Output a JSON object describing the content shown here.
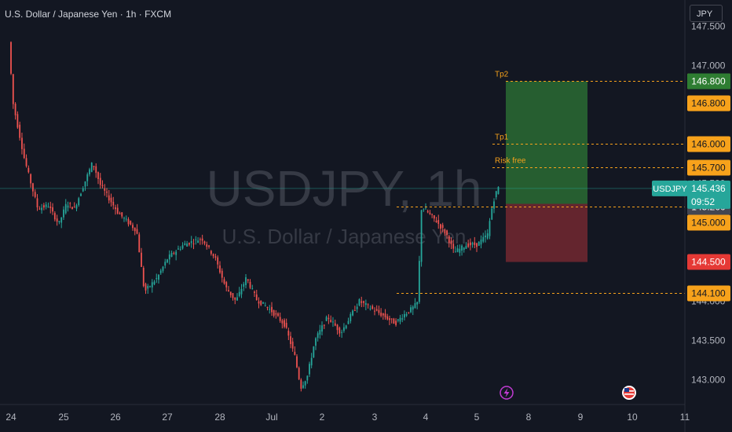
{
  "header": {
    "title": "U.S. Dollar / Japanese Yen · 1h · FXCM",
    "currency_button": "JPY"
  },
  "watermark": {
    "symbol": "USDJPY, 1h",
    "description": "U.S. Dollar / Japanese Yen"
  },
  "colors": {
    "background": "#131722",
    "up": "#26a69a",
    "down": "#ef5350",
    "level_line": "#f7a21b",
    "profit_zone": "#2a6b32",
    "loss_zone": "#6e2730",
    "current_price": "#26a69a"
  },
  "chart_data": {
    "type": "candlestick",
    "symbol": "USDJPY",
    "timeframe": "1h",
    "source": "FXCM",
    "y_axis": {
      "ticks": [
        143.0,
        143.5,
        144.0,
        144.5,
        145.0,
        145.5,
        146.0,
        146.5,
        147.0,
        147.5
      ],
      "tick_labels": [
        "143.000",
        "143.500",
        "144.000",
        "144.500",
        "145.000",
        "145.500",
        "146.000",
        "146.500",
        "147.000",
        "147.500"
      ],
      "ylim": [
        142.62,
        147.58
      ]
    },
    "x_axis": {
      "tick_labels": [
        "24",
        "25",
        "26",
        "27",
        "28",
        "Jul",
        "2",
        "3",
        "4",
        "5",
        "8",
        "9",
        "10",
        "11"
      ],
      "tick_index": [
        0,
        1,
        2,
        3,
        4,
        5,
        6,
        7,
        8,
        9,
        10,
        11,
        12,
        13
      ]
    },
    "price_path": [
      [
        0,
        147.3
      ],
      [
        0.08,
        146.52
      ],
      [
        0.3,
        145.8
      ],
      [
        0.55,
        145.18
      ],
      [
        0.75,
        145.22
      ],
      [
        0.95,
        144.98
      ],
      [
        1.1,
        145.25
      ],
      [
        1.25,
        145.18
      ],
      [
        1.6,
        145.77
      ],
      [
        1.75,
        145.48
      ],
      [
        2.1,
        145.12
      ],
      [
        2.45,
        144.9
      ],
      [
        2.6,
        144.12
      ],
      [
        2.85,
        144.3
      ],
      [
        3.05,
        144.55
      ],
      [
        3.35,
        144.72
      ],
      [
        3.7,
        144.8
      ],
      [
        3.95,
        144.55
      ],
      [
        4.15,
        144.18
      ],
      [
        4.35,
        144.0
      ],
      [
        4.55,
        144.3
      ],
      [
        4.75,
        144.02
      ],
      [
        5.0,
        143.9
      ],
      [
        5.3,
        143.7
      ],
      [
        5.5,
        143.3
      ],
      [
        5.62,
        142.9
      ],
      [
        5.75,
        143.05
      ],
      [
        5.9,
        143.5
      ],
      [
        6.15,
        143.8
      ],
      [
        6.4,
        143.6
      ],
      [
        6.75,
        144.0
      ],
      [
        7.0,
        143.9
      ],
      [
        7.3,
        143.78
      ],
      [
        7.45,
        143.72
      ],
      [
        7.6,
        143.82
      ],
      [
        7.8,
        143.92
      ],
      [
        7.9,
        144.0
      ],
      [
        7.92,
        144.6
      ],
      [
        7.96,
        145.2
      ],
      [
        8.05,
        145.15
      ],
      [
        8.25,
        145.02
      ],
      [
        8.45,
        144.85
      ],
      [
        8.6,
        144.62
      ],
      [
        8.85,
        144.72
      ],
      [
        9.05,
        144.72
      ],
      [
        9.25,
        144.85
      ],
      [
        9.35,
        145.25
      ],
      [
        9.45,
        145.45
      ]
    ],
    "price_lines": [
      {
        "label": "Tp2",
        "price": 146.8,
        "price_label": "146.800"
      },
      {
        "label": "Tp1",
        "price": 146.0,
        "price_label": "146.000"
      },
      {
        "label": "Risk free",
        "price": 145.7,
        "price_label": "145.700"
      },
      {
        "label": "",
        "price": 145.2,
        "price_label": "145.200"
      },
      {
        "label": "",
        "price": 144.1,
        "price_label": "144.100"
      }
    ],
    "axis_badges": [
      {
        "price": 146.8,
        "label": "146.800",
        "kind": "target"
      },
      {
        "price": 145.0,
        "label": "145.000",
        "kind": "level"
      },
      {
        "price": 144.5,
        "label": "144.500",
        "kind": "stop"
      }
    ],
    "position": {
      "type": "long",
      "entry": 145.2,
      "target": 146.8,
      "stop": 144.5
    },
    "current_price": {
      "symbol": "USDJPY",
      "price": 145.436,
      "price_label": "145.436",
      "countdown": "09:52"
    },
    "event_markers": [
      "lightning-icon",
      "us-flag-icon"
    ]
  }
}
